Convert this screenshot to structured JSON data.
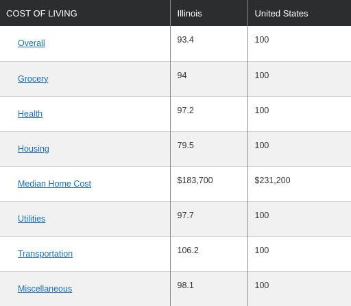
{
  "table": {
    "headers": [
      "COST OF LIVING",
      "Illinois",
      "United States"
    ],
    "rows": [
      {
        "category": "Overall",
        "illinois": "93.4",
        "us": "100"
      },
      {
        "category": "Grocery",
        "illinois": "94",
        "us": "100"
      },
      {
        "category": "Health",
        "illinois": "97.2",
        "us": "100"
      },
      {
        "category": "Housing",
        "illinois": "79.5",
        "us": "100"
      },
      {
        "category": "Median Home Cost",
        "illinois": "$183,700",
        "us": "$231,200"
      },
      {
        "category": "Utilities",
        "illinois": "97.7",
        "us": "100"
      },
      {
        "category": "Transportation",
        "illinois": "106.2",
        "us": "100"
      },
      {
        "category": "Miscellaneous",
        "illinois": "98.1",
        "us": "100"
      }
    ]
  },
  "colors": {
    "header_bg": "#2b2d2f",
    "link": "#1b6fb8",
    "stripe": "#f1f1f1"
  }
}
